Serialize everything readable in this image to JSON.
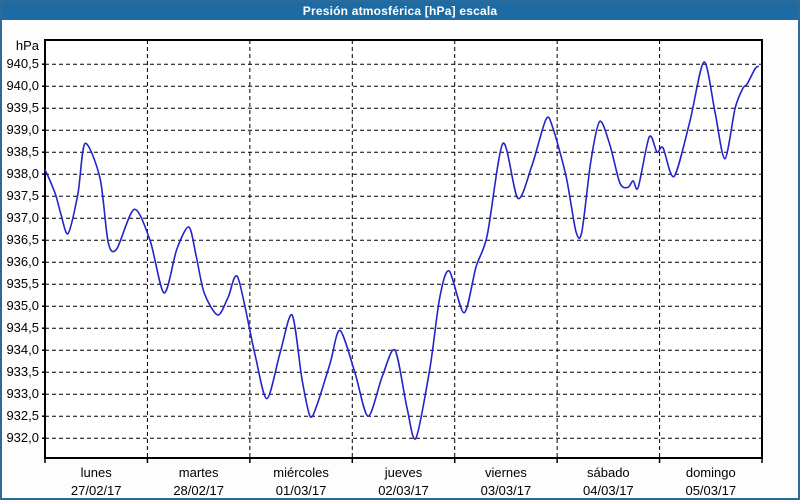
{
  "window": {
    "title": "Presión atmosférica [hPa] escala"
  },
  "colors": {
    "titlebar_bg": "#1e6ba3",
    "titlebar_text": "#ffffff",
    "frame_border": "#2b6a99",
    "line": "#2424c8",
    "grid": "#000000",
    "axis_text": "#000000",
    "plot_bg": "#ffffff",
    "page_bg": "#fdfdfd"
  },
  "chart_data": {
    "type": "line",
    "title": "Presión atmosférica [hPa] escala",
    "ylabel": "hPa",
    "legend_position": "none",
    "grid": "dashed",
    "y_axis": {
      "display_min": 931.55,
      "display_max": 941.05,
      "ticks": [
        {
          "value": 940.5,
          "label": "940,5"
        },
        {
          "value": 940.0,
          "label": "940,0"
        },
        {
          "value": 939.5,
          "label": "939,5"
        },
        {
          "value": 939.0,
          "label": "939,0"
        },
        {
          "value": 938.5,
          "label": "938,5"
        },
        {
          "value": 938.0,
          "label": "938,0"
        },
        {
          "value": 937.5,
          "label": "937,5"
        },
        {
          "value": 937.0,
          "label": "937,0"
        },
        {
          "value": 936.5,
          "label": "936,5"
        },
        {
          "value": 936.0,
          "label": "936,0"
        },
        {
          "value": 935.5,
          "label": "935,5"
        },
        {
          "value": 935.0,
          "label": "935,0"
        },
        {
          "value": 934.5,
          "label": "934,5"
        },
        {
          "value": 934.0,
          "label": "934,0"
        },
        {
          "value": 933.5,
          "label": "933,5"
        },
        {
          "value": 933.0,
          "label": "933,0"
        },
        {
          "value": 932.5,
          "label": "932,5"
        },
        {
          "value": 932.0,
          "label": "932,0"
        }
      ]
    },
    "x_axis": {
      "hours_total": 168,
      "days": [
        {
          "name": "lunes",
          "date": "27/02/17"
        },
        {
          "name": "martes",
          "date": "28/02/17"
        },
        {
          "name": "miércoles",
          "date": "01/03/17"
        },
        {
          "name": "jueves",
          "date": "02/03/17"
        },
        {
          "name": "viernes",
          "date": "03/03/17"
        },
        {
          "name": "sábado",
          "date": "04/03/17"
        },
        {
          "name": "domingo",
          "date": "05/03/17"
        }
      ]
    },
    "series": [
      {
        "name": "Presión atmosférica",
        "unit": "hPa",
        "color": "#2424c8",
        "points": [
          [
            0.0,
            938.1
          ],
          [
            1.2,
            937.85
          ],
          [
            2.6,
            937.5
          ],
          [
            3.7,
            937.1
          ],
          [
            5.4,
            936.65
          ],
          [
            7.7,
            937.55
          ],
          [
            9.4,
            938.7
          ],
          [
            12.9,
            937.9
          ],
          [
            14.8,
            936.45
          ],
          [
            16.8,
            936.3
          ],
          [
            20.9,
            937.2
          ],
          [
            24.6,
            936.5
          ],
          [
            27.9,
            935.3
          ],
          [
            30.9,
            936.3
          ],
          [
            33.7,
            936.8
          ],
          [
            35.4,
            936.15
          ],
          [
            37.3,
            935.3
          ],
          [
            40.5,
            934.8
          ],
          [
            42.9,
            935.2
          ],
          [
            45.2,
            935.65
          ],
          [
            49.2,
            933.9
          ],
          [
            52.0,
            932.9
          ],
          [
            55.1,
            933.95
          ],
          [
            57.9,
            934.8
          ],
          [
            60.2,
            933.35
          ],
          [
            62.1,
            932.5
          ],
          [
            63.7,
            932.75
          ],
          [
            66.8,
            933.7
          ],
          [
            69.1,
            934.45
          ],
          [
            72.6,
            933.5
          ],
          [
            75.7,
            932.5
          ],
          [
            79.0,
            933.4
          ],
          [
            82.0,
            934.0
          ],
          [
            84.8,
            932.7
          ],
          [
            86.9,
            932.0
          ],
          [
            90.2,
            933.6
          ],
          [
            92.5,
            935.2
          ],
          [
            94.7,
            935.8
          ],
          [
            98.2,
            934.85
          ],
          [
            101.0,
            935.9
          ],
          [
            103.6,
            936.6
          ],
          [
            107.3,
            938.7
          ],
          [
            110.8,
            937.45
          ],
          [
            114.1,
            938.2
          ],
          [
            117.4,
            939.25
          ],
          [
            119.0,
            939.05
          ],
          [
            122.1,
            937.95
          ],
          [
            124.4,
            936.7
          ],
          [
            125.8,
            936.7
          ],
          [
            127.9,
            938.3
          ],
          [
            130.0,
            939.2
          ],
          [
            132.4,
            938.65
          ],
          [
            134.7,
            937.8
          ],
          [
            136.6,
            937.7
          ],
          [
            137.8,
            937.85
          ],
          [
            139.0,
            937.7
          ],
          [
            141.6,
            938.85
          ],
          [
            143.4,
            938.5
          ],
          [
            144.8,
            938.6
          ],
          [
            147.4,
            937.95
          ],
          [
            151.1,
            939.2
          ],
          [
            154.4,
            940.55
          ],
          [
            157.0,
            939.4
          ],
          [
            159.3,
            938.35
          ],
          [
            161.7,
            939.5
          ],
          [
            163.5,
            939.95
          ],
          [
            164.5,
            940.05
          ],
          [
            166.4,
            940.4
          ],
          [
            167.1,
            940.45
          ]
        ]
      }
    ]
  }
}
